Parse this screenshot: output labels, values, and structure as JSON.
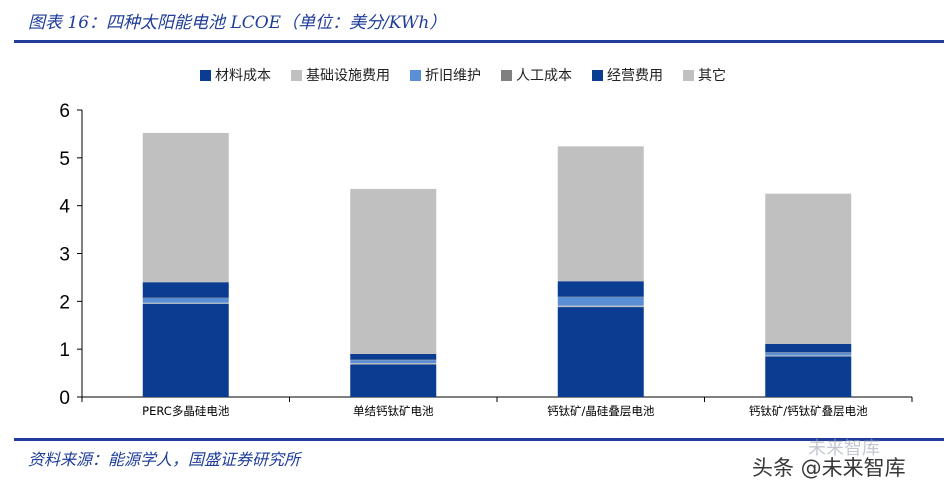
{
  "header": {
    "title": "图表 16：四种太阳能电池 LCOE（单位：美分/KWh）"
  },
  "footer": {
    "source": "资料来源：能源学人，国盛证券研究所"
  },
  "watermark": {
    "text": "头条 @未来智库",
    "faint": "未来智库"
  },
  "chart_data": {
    "type": "bar",
    "stacked": true,
    "categories": [
      "PERC多晶硅电池",
      "单结钙钛矿电池",
      "钙钛矿/晶硅叠层电池",
      "钙钛矿/钙钛矿叠层电池"
    ],
    "series": [
      {
        "name": "材料成本",
        "color": "#0a3d91",
        "values": [
          1.95,
          0.68,
          1.88,
          0.85
        ]
      },
      {
        "name": "基础设施费用",
        "color": "#c0c0c0",
        "values": [
          0.02,
          0.03,
          0.03,
          0.02
        ]
      },
      {
        "name": "折旧维护",
        "color": "#5a8fd6",
        "values": [
          0.1,
          0.06,
          0.18,
          0.06
        ]
      },
      {
        "name": "人工成本",
        "color": "#808080",
        "values": [
          0.01,
          0.01,
          0.01,
          0.01
        ]
      },
      {
        "name": "经营费用",
        "color": "#0a3d91",
        "values": [
          0.32,
          0.12,
          0.32,
          0.17
        ]
      },
      {
        "name": "其它",
        "color": "#c0c0c0",
        "values": [
          3.12,
          3.45,
          2.82,
          3.14
        ]
      }
    ],
    "ylim": [
      0,
      6
    ],
    "yticks": [
      "0",
      "1",
      "2",
      "3",
      "4",
      "5",
      "6"
    ],
    "legend_position": "top",
    "grid": false,
    "xlabel": "",
    "ylabel": ""
  }
}
